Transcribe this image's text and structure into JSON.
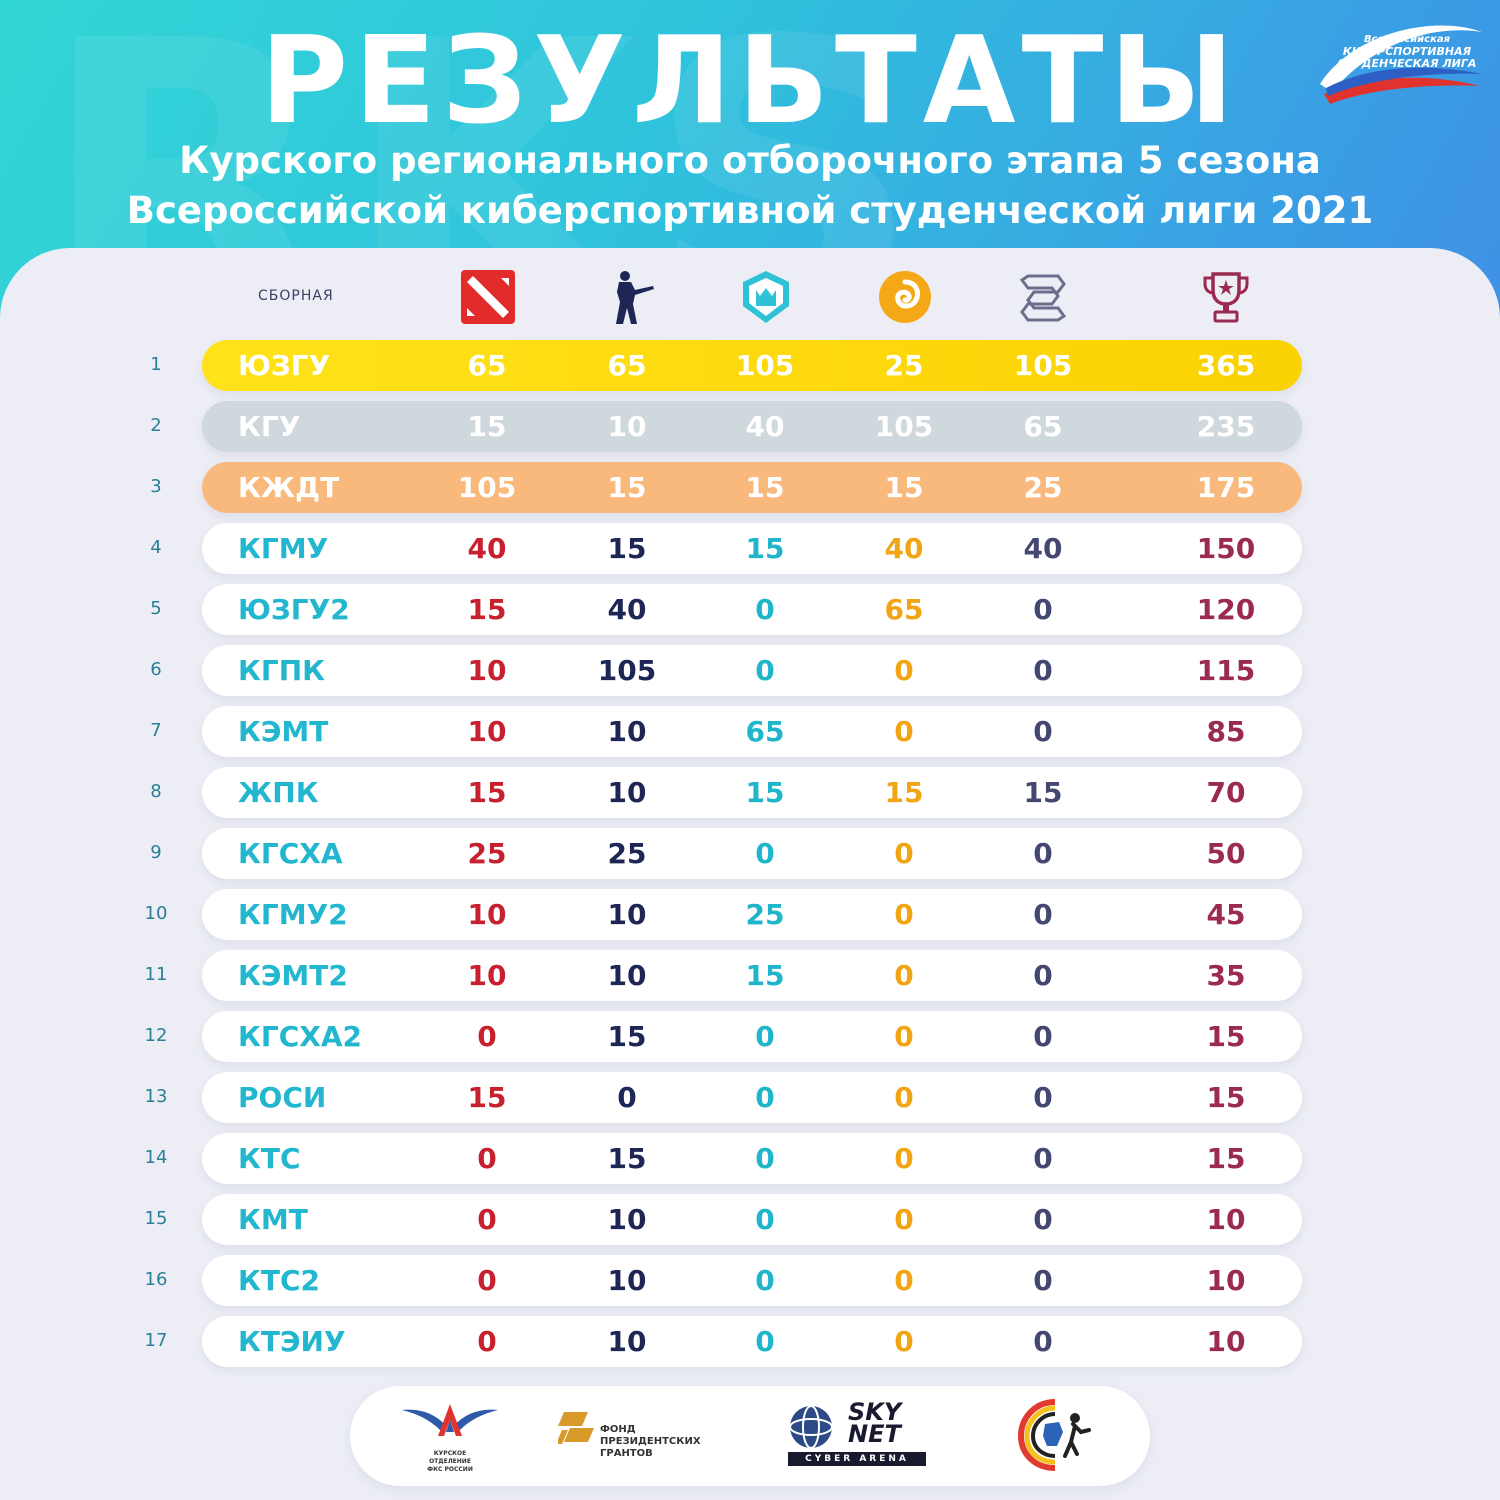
{
  "header": {
    "title": "РЕЗУЛЬТАТЫ",
    "subtitle_line1": "Курского регионального отборочного этапа 5 сезона",
    "subtitle_line2": "Всероссийской киберспортивной студенческой лиги 2021",
    "background_letters": "RKS"
  },
  "league_logo": {
    "line1": "Всероссийская",
    "line2": "КИБЕРСПОРТИВНАЯ",
    "line3": "СТУДЕНЧЕСКАЯ ЛИГА"
  },
  "table": {
    "team_column_label": "СБОРНАЯ",
    "column_icons": [
      "dota2-icon",
      "counter-strike-icon",
      "clash-royale-icon",
      "hearthstone-icon",
      "starcraft-icon",
      "trophy-icon"
    ],
    "column_colors": [
      "#c8202f",
      "#1e2655",
      "#1fb6cc",
      "#f2a514",
      "#444870",
      "#9b2a52"
    ],
    "rows": [
      {
        "rank": "1",
        "team": "ЮЗГУ",
        "scores": [
          "65",
          "65",
          "105",
          "25",
          "105"
        ],
        "total": "365",
        "style": "gold"
      },
      {
        "rank": "2",
        "team": "КГУ",
        "scores": [
          "15",
          "10",
          "40",
          "105",
          "65"
        ],
        "total": "235",
        "style": "silver"
      },
      {
        "rank": "3",
        "team": "КЖДТ",
        "scores": [
          "105",
          "15",
          "15",
          "15",
          "25"
        ],
        "total": "175",
        "style": "bronze"
      },
      {
        "rank": "4",
        "team": "КГМУ",
        "scores": [
          "40",
          "15",
          "15",
          "40",
          "40"
        ],
        "total": "150",
        "style": "plain"
      },
      {
        "rank": "5",
        "team": "ЮЗГУ2",
        "scores": [
          "15",
          "40",
          "0",
          "65",
          "0"
        ],
        "total": "120",
        "style": "plain"
      },
      {
        "rank": "6",
        "team": "КГПК",
        "scores": [
          "10",
          "105",
          "0",
          "0",
          "0"
        ],
        "total": "115",
        "style": "plain"
      },
      {
        "rank": "7",
        "team": "КЭМТ",
        "scores": [
          "10",
          "10",
          "65",
          "0",
          "0"
        ],
        "total": "85",
        "style": "plain"
      },
      {
        "rank": "8",
        "team": "ЖПК",
        "scores": [
          "15",
          "10",
          "15",
          "15",
          "15"
        ],
        "total": "70",
        "style": "plain"
      },
      {
        "rank": "9",
        "team": "КГСХА",
        "scores": [
          "25",
          "25",
          "0",
          "0",
          "0"
        ],
        "total": "50",
        "style": "plain"
      },
      {
        "rank": "10",
        "team": "КГМУ2",
        "scores": [
          "10",
          "10",
          "25",
          "0",
          "0"
        ],
        "total": "45",
        "style": "plain"
      },
      {
        "rank": "11",
        "team": "КЭМТ2",
        "scores": [
          "10",
          "10",
          "15",
          "0",
          "0"
        ],
        "total": "35",
        "style": "plain"
      },
      {
        "rank": "12",
        "team": "КГСХА2",
        "scores": [
          "0",
          "15",
          "0",
          "0",
          "0"
        ],
        "total": "15",
        "style": "plain"
      },
      {
        "rank": "13",
        "team": "РОСИ",
        "scores": [
          "15",
          "0",
          "0",
          "0",
          "0"
        ],
        "total": "15",
        "style": "plain"
      },
      {
        "rank": "14",
        "team": "КТС",
        "scores": [
          "0",
          "15",
          "0",
          "0",
          "0"
        ],
        "total": "15",
        "style": "plain"
      },
      {
        "rank": "15",
        "team": "КМТ",
        "scores": [
          "0",
          "10",
          "0",
          "0",
          "0"
        ],
        "total": "10",
        "style": "plain"
      },
      {
        "rank": "16",
        "team": "КТС2",
        "scores": [
          "0",
          "10",
          "0",
          "0",
          "0"
        ],
        "total": "10",
        "style": "plain"
      },
      {
        "rank": "17",
        "team": "КТЭИУ",
        "scores": [
          "0",
          "10",
          "0",
          "0",
          "0"
        ],
        "total": "10",
        "style": "plain"
      }
    ]
  },
  "sponsors": {
    "fks": "КУРСКОЕ\nОТДЕЛЕНИЕ\nФКС РОССИИ",
    "grants": "ФОНД\nПРЕЗИДЕНТСКИХ\nГРАНТОВ",
    "skynet_top": "SKY",
    "skynet_bottom": "NET",
    "skynet_sub": "CYBER ARENA"
  }
}
